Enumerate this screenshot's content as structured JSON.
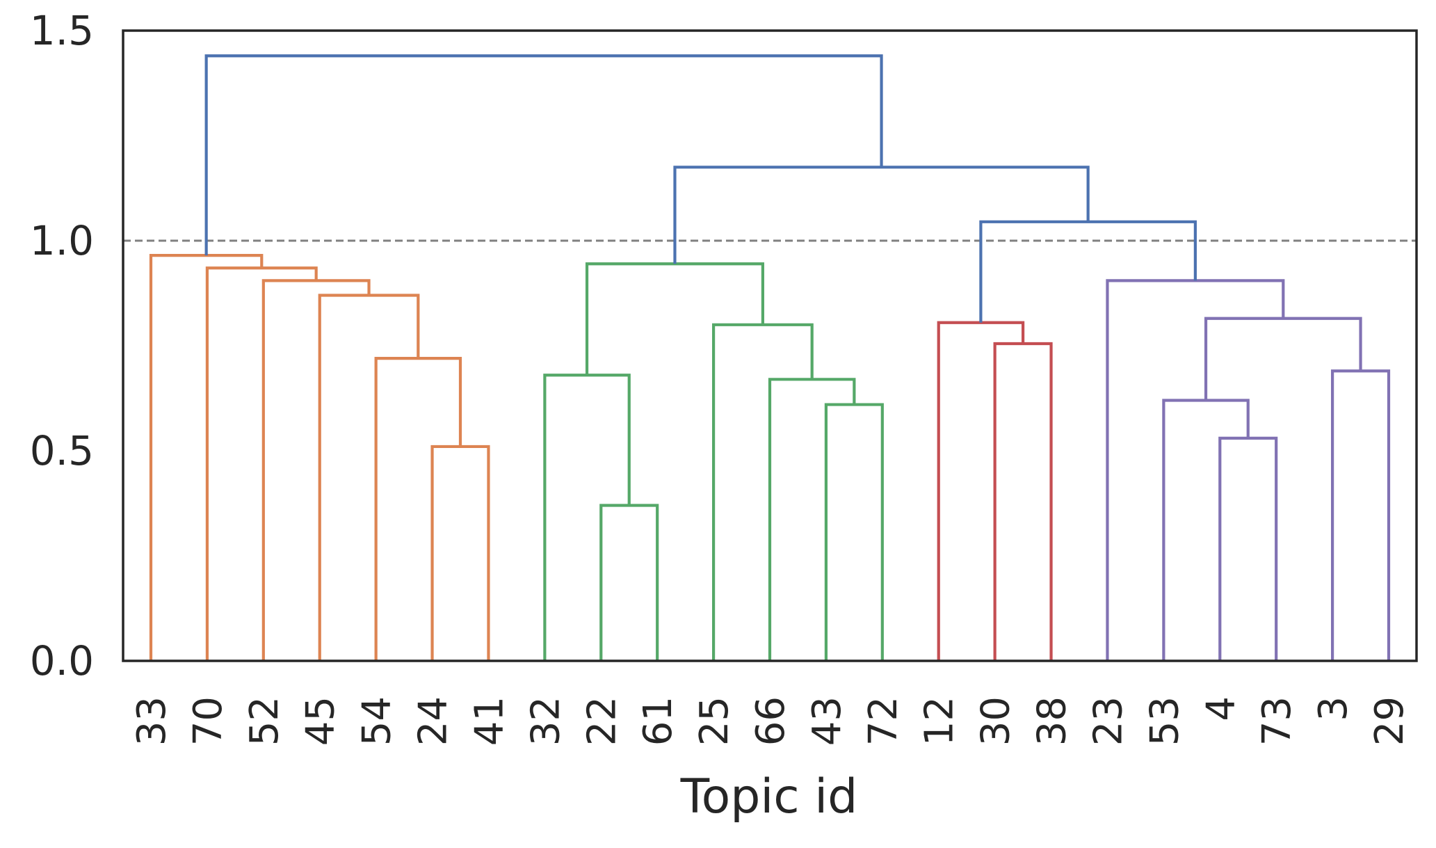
{
  "chart_data": {
    "type": "dendrogram",
    "title": "",
    "xlabel": "Topic id",
    "ylabel": "",
    "ylim": [
      0,
      1.5
    ],
    "yticks": [
      "0.0",
      "0.5",
      "1.0",
      "1.5"
    ],
    "threshold": 1.0,
    "threshold_color": "#808080",
    "leaves": [
      "33",
      "70",
      "52",
      "45",
      "54",
      "24",
      "41",
      "32",
      "22",
      "61",
      "25",
      "66",
      "43",
      "72",
      "12",
      "30",
      "38",
      "23",
      "53",
      "4",
      "73",
      "3",
      "29"
    ],
    "colors": {
      "above_threshold": "#4c72b0",
      "cluster_1": "#dd8452",
      "cluster_2": "#55a868",
      "cluster_3": "#c44e52",
      "cluster_4": "#8172b3"
    },
    "merges": [
      {
        "left": "24",
        "right": "41",
        "height": 0.51,
        "color": "cluster_1"
      },
      {
        "left": "54",
        "right": "m1",
        "height": 0.72,
        "color": "cluster_1"
      },
      {
        "left": "45",
        "right": "m2",
        "height": 0.87,
        "color": "cluster_1"
      },
      {
        "left": "52",
        "right": "m3",
        "height": 0.905,
        "color": "cluster_1"
      },
      {
        "left": "70",
        "right": "m4",
        "height": 0.935,
        "color": "cluster_1"
      },
      {
        "left": "33",
        "right": "m5",
        "height": 0.965,
        "color": "cluster_1"
      },
      {
        "left": "22",
        "right": "61",
        "height": 0.37,
        "color": "cluster_2"
      },
      {
        "left": "32",
        "right": "m7",
        "height": 0.68,
        "color": "cluster_2"
      },
      {
        "left": "43",
        "right": "72",
        "height": 0.61,
        "color": "cluster_2"
      },
      {
        "left": "66",
        "right": "m9",
        "height": 0.67,
        "color": "cluster_2"
      },
      {
        "left": "25",
        "right": "m10",
        "height": 0.8,
        "color": "cluster_2"
      },
      {
        "left": "m8",
        "right": "m11",
        "height": 0.945,
        "color": "cluster_2"
      },
      {
        "left": "30",
        "right": "38",
        "height": 0.755,
        "color": "cluster_3"
      },
      {
        "left": "12",
        "right": "m13",
        "height": 0.805,
        "color": "cluster_3"
      },
      {
        "left": "4",
        "right": "73",
        "height": 0.53,
        "color": "cluster_4"
      },
      {
        "left": "53",
        "right": "m15",
        "height": 0.62,
        "color": "cluster_4"
      },
      {
        "left": "3",
        "right": "29",
        "height": 0.69,
        "color": "cluster_4"
      },
      {
        "left": "m16",
        "right": "m17",
        "height": 0.815,
        "color": "cluster_4"
      },
      {
        "left": "23",
        "right": "m18",
        "height": 0.905,
        "color": "cluster_4"
      },
      {
        "left": "m14",
        "right": "m19",
        "height": 1.045,
        "color": "above_threshold"
      },
      {
        "left": "m12",
        "right": "m20",
        "height": 1.175,
        "color": "above_threshold"
      },
      {
        "left": "m6",
        "right": "m21",
        "height": 1.44,
        "color": "above_threshold"
      }
    ]
  }
}
